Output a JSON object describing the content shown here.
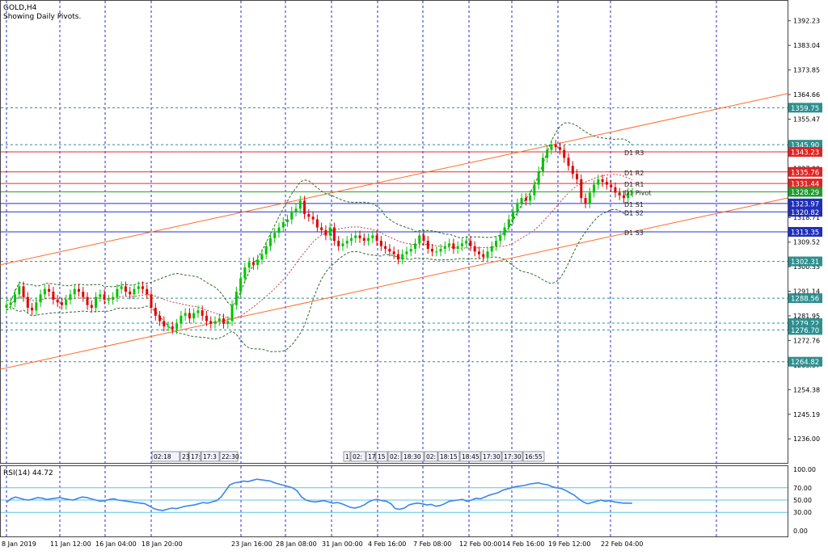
{
  "header": {
    "symbol": "GOLD,H4",
    "subtitle": "Showing Daily Pivots."
  },
  "colors": {
    "bull": "#00c400",
    "bear": "#e00000",
    "channel": "#ff6a2c",
    "grid": "#2b2bd0",
    "pivot_green": "#2e9e2e",
    "blue_level": "#2233cc",
    "red_level": "#e03030",
    "dashed_level": "#2f8f8f",
    "rsi_line": "#3a86e8",
    "rsi_level": "#5fc3e0"
  },
  "chart_data": [
    {
      "type": "candlestick",
      "title": "GOLD,H4",
      "ylim": [
        1227.0,
        1400.0
      ],
      "y_ticks": [
        "1392.23",
        "1383.04",
        "1373.85",
        "1364.66",
        "1355.47",
        "1337.09",
        "1318.71",
        "1309.52",
        "1300.33",
        "1291.14",
        "1281.95",
        "1272.76",
        "1263.57",
        "1254.38",
        "1245.19",
        "1236.00"
      ],
      "x_ticks": [
        "8 Jan 2019",
        "11 Jan 12:00",
        "16 Jan 04:00",
        "18 Jan 20:00",
        "23 Jan 16:00",
        "28 Jan 08:00",
        "31 Jan 00:00",
        "4 Feb 16:00",
        "7 Feb 08:00",
        "12 Feb 00:00",
        "14 Feb 16:00",
        "19 Feb 12:00",
        "22 Feb 04:00"
      ],
      "price_labels": [
        {
          "label": "1359.75",
          "value": 1359.75,
          "style": "dashed"
        },
        {
          "label": "1345.90",
          "value": 1345.9,
          "style": "dashed"
        },
        {
          "label": "1343.23",
          "value": 1343.23,
          "style": "red"
        },
        {
          "label": "1335.76",
          "value": 1335.76,
          "style": "red"
        },
        {
          "label": "1331.44",
          "value": 1331.44,
          "style": "red"
        },
        {
          "label": "1328.29",
          "value": 1328.29,
          "style": "green"
        },
        {
          "label": "1323.97",
          "value": 1323.97,
          "style": "blue"
        },
        {
          "label": "1320.82",
          "value": 1320.82,
          "style": "blue"
        },
        {
          "label": "1313.35",
          "value": 1313.35,
          "style": "blue"
        },
        {
          "label": "1302.31",
          "value": 1302.31,
          "style": "dashed"
        },
        {
          "label": "1288.56",
          "value": 1288.56,
          "style": "dashed"
        },
        {
          "label": "1279.22",
          "value": 1279.22,
          "style": "dashed"
        },
        {
          "label": "1276.70",
          "value": 1276.7,
          "style": "dashed"
        },
        {
          "label": "1264.82",
          "value": 1264.82,
          "style": "dashed"
        }
      ],
      "pivots": [
        {
          "label": "D1 R3",
          "value": 1343.23
        },
        {
          "label": "D1 R2",
          "value": 1335.76
        },
        {
          "label": "D1 R1",
          "value": 1331.44
        },
        {
          "label": "D1 Pivot",
          "value": 1328.29
        },
        {
          "label": "D1 S1",
          "value": 1323.97
        },
        {
          "label": "D1 S2",
          "value": 1320.82
        },
        {
          "label": "D1 S3",
          "value": 1313.35
        }
      ],
      "channel_lines": [
        {
          "from": [
            0,
            1301
          ],
          "to": [
            158,
            1365
          ]
        },
        {
          "from": [
            0,
            1262
          ],
          "to": [
            158,
            1326
          ]
        }
      ],
      "closes": [
        1286,
        1287,
        1290,
        1293,
        1289,
        1285,
        1284,
        1287,
        1290,
        1292,
        1291,
        1288,
        1287,
        1286,
        1288,
        1290,
        1292,
        1291,
        1289,
        1286,
        1285,
        1289,
        1290,
        1288,
        1288,
        1289,
        1292,
        1293,
        1291,
        1290,
        1292,
        1293,
        1292,
        1290,
        1285,
        1282,
        1280,
        1278,
        1278,
        1277,
        1279,
        1282,
        1283,
        1281,
        1283,
        1284,
        1282,
        1280,
        1279,
        1280,
        1281,
        1279,
        1280,
        1286,
        1291,
        1296,
        1300,
        1302,
        1301,
        1303,
        1305,
        1308,
        1311,
        1313,
        1315,
        1317,
        1318,
        1321,
        1322,
        1325,
        1320,
        1319,
        1318,
        1315,
        1314,
        1312,
        1315,
        1310,
        1308,
        1309,
        1310,
        1311,
        1312,
        1311,
        1310,
        1311,
        1312,
        1310,
        1308,
        1307,
        1306,
        1305,
        1303,
        1305,
        1306,
        1307,
        1309,
        1312,
        1310,
        1307,
        1306,
        1306,
        1307,
        1308,
        1309,
        1307,
        1308,
        1309,
        1310,
        1308,
        1306,
        1305,
        1304,
        1306,
        1308,
        1310,
        1312,
        1315,
        1318,
        1321,
        1324,
        1326,
        1325,
        1327,
        1331,
        1336,
        1341,
        1344,
        1346,
        1345,
        1344,
        1341,
        1338,
        1335,
        1333,
        1326,
        1324,
        1328,
        1331,
        1333,
        1332,
        1331,
        1330,
        1328,
        1327,
        1326,
        1328,
        1328
      ]
    },
    {
      "type": "line",
      "title": "RSI(14) 44.72",
      "ylim": [
        0,
        100
      ],
      "y_ticks": [
        "100.00",
        "70.00",
        "50.00",
        "30.00",
        "0.00"
      ],
      "levels": [
        70,
        50,
        30
      ],
      "values": [
        46,
        52,
        55,
        53,
        51,
        50,
        52,
        54,
        53,
        51,
        52,
        53,
        54,
        52,
        51,
        50,
        53,
        55,
        54,
        52,
        50,
        48,
        49,
        51,
        52,
        50,
        49,
        48,
        47,
        46,
        45,
        44,
        40,
        36,
        34,
        33,
        35,
        37,
        36,
        38,
        40,
        41,
        42,
        44,
        46,
        45,
        47,
        49,
        55,
        65,
        75,
        78,
        79,
        81,
        80,
        82,
        84,
        83,
        82,
        81,
        78,
        76,
        74,
        72,
        70,
        65,
        55,
        50,
        48,
        47,
        48,
        49,
        47,
        45,
        46,
        44,
        41,
        38,
        37,
        39,
        42,
        47,
        50,
        51,
        49,
        48,
        44,
        36,
        35,
        37,
        42,
        44,
        45,
        44,
        42,
        43,
        40,
        41,
        44,
        48,
        49,
        50,
        51,
        48,
        50,
        53,
        52,
        55,
        58,
        60,
        62,
        66,
        68,
        70,
        72,
        73,
        74,
        76,
        77,
        78,
        76,
        75,
        72,
        70,
        69,
        66,
        62,
        58,
        52,
        47,
        44,
        46,
        48,
        50,
        48,
        49,
        47,
        46,
        45,
        45,
        44.72
      ]
    }
  ],
  "session_markers": {
    "group_a": [
      "02:18",
      "23:",
      "17:3",
      "17:3",
      "22:30"
    ],
    "group_b": [
      "1",
      "02:",
      "17",
      "15",
      "02:",
      "18:30",
      "02:",
      "18:15",
      "18:45",
      "17:30",
      "17:30",
      "16:55"
    ]
  }
}
